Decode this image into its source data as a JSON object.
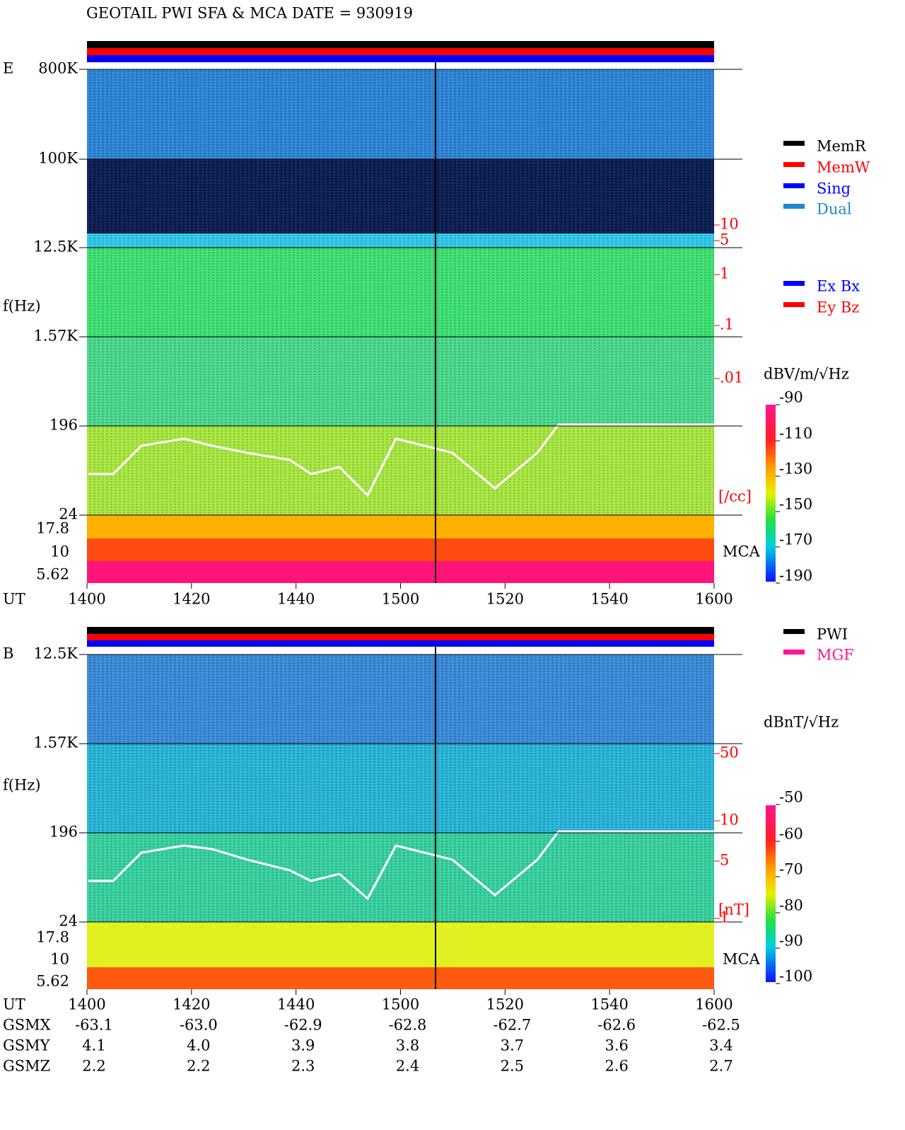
{
  "header": {
    "title": "GEOTAIL  PWI SFA & MCA   DATE = 930919"
  },
  "panels": [
    {
      "label": "E",
      "ylabel": "f(Hz)",
      "freq_ticks": [
        "800K",
        "100K",
        "12.5K",
        "1.57K",
        "196",
        "24"
      ],
      "mca_ticks": [
        "17.8",
        "10",
        "5.62"
      ],
      "mca_label": "MCA",
      "right_ticks": [
        "10",
        "5",
        "1",
        ".1",
        ".01"
      ],
      "right_unit": "[/cc]",
      "colorbar": {
        "unit": "dBV/m/√Hz",
        "ticks": [
          -90,
          -110,
          -130,
          -150,
          -170,
          -190
        ]
      },
      "legend": [
        {
          "name": "MemR",
          "color": "#000000"
        },
        {
          "name": "MemW",
          "color": "#ff0000"
        },
        {
          "name": "Sing",
          "color": "#0000ff"
        },
        {
          "name": "Dual",
          "color": "#1e88c8"
        },
        {
          "name": "Ex Bx",
          "color": "#0000ff"
        },
        {
          "name": "Ey Bz",
          "color": "#ff0000"
        }
      ]
    },
    {
      "label": "B",
      "ylabel": "f(Hz)",
      "freq_ticks": [
        "12.5K",
        "1.57K",
        "196",
        "24"
      ],
      "mca_ticks": [
        "17.8",
        "10",
        "5.62"
      ],
      "mca_label": "MCA",
      "right_ticks": [
        "50",
        "10",
        "5",
        "1"
      ],
      "right_unit": "[nT]",
      "colorbar": {
        "unit": "dBnT/√Hz",
        "ticks": [
          -50,
          -60,
          -70,
          -80,
          -90,
          -100
        ]
      },
      "legend": [
        {
          "name": "PWI",
          "color": "#000000"
        },
        {
          "name": "MGF",
          "color": "#ff1493"
        }
      ]
    }
  ],
  "time_axis": {
    "label": "UT",
    "ticks": [
      "1400",
      "1420",
      "1440",
      "1500",
      "1520",
      "1540",
      "1600"
    ]
  },
  "orbit": [
    {
      "label": "GSMX",
      "values": [
        "-63.1",
        "-63.0",
        "-62.9",
        "-62.8",
        "-62.7",
        "-62.6",
        "-62.5"
      ]
    },
    {
      "label": "GSMY",
      "values": [
        "4.1",
        "4.0",
        "3.9",
        "3.8",
        "3.7",
        "3.6",
        "3.4"
      ]
    },
    {
      "label": "GSMZ",
      "values": [
        "2.2",
        "2.2",
        "2.3",
        "2.4",
        "2.5",
        "2.6",
        "2.7"
      ]
    }
  ]
}
